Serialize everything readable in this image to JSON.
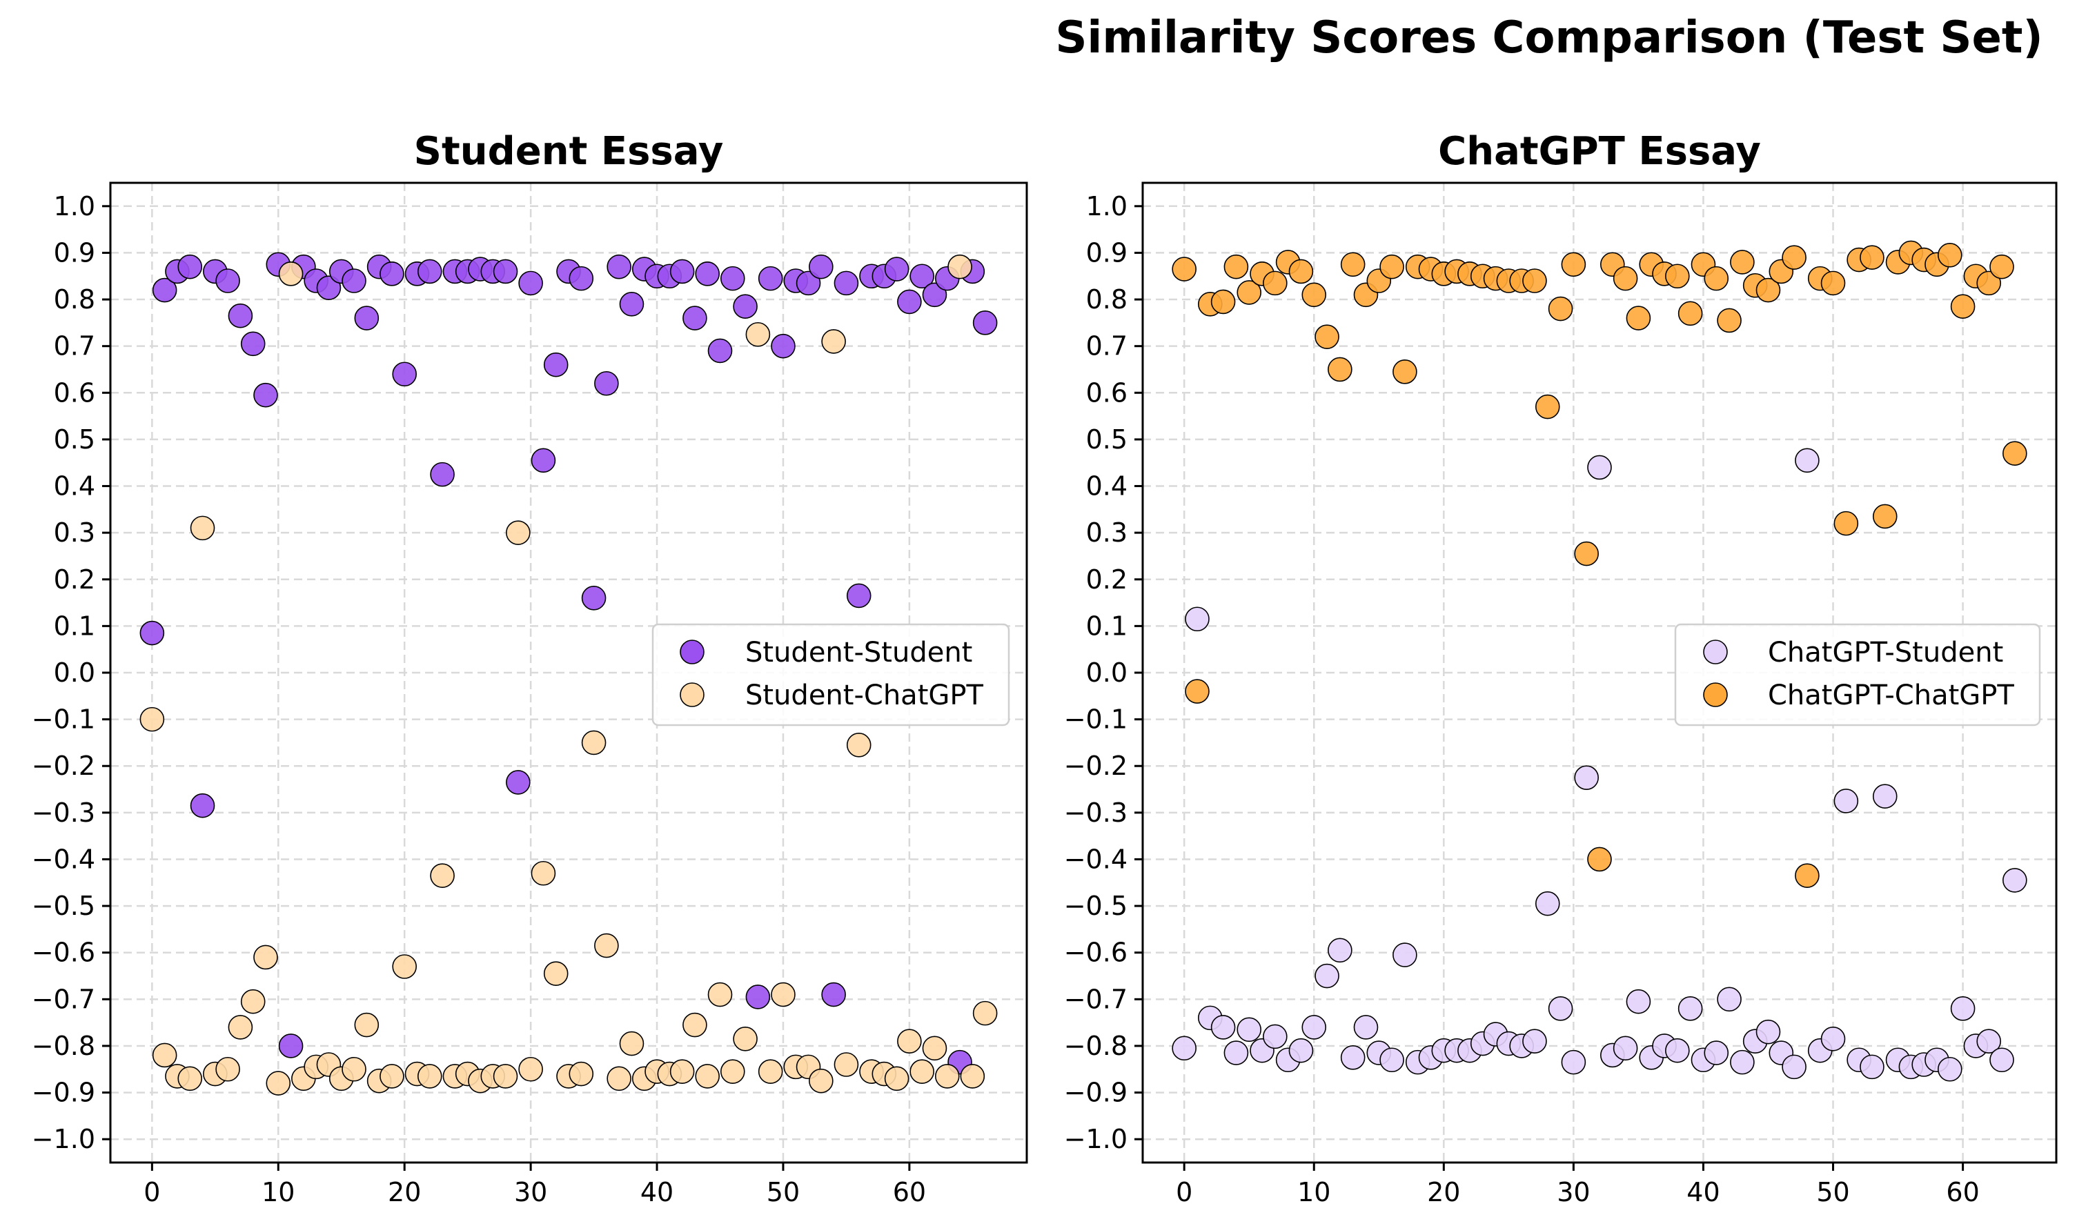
{
  "figure": {
    "suptitle": "Similarity Scores Comparison (Test Set)"
  },
  "chart_data": [
    {
      "type": "scatter",
      "title": "Student Essay",
      "xlabel": "",
      "ylabel": "",
      "xlim": [
        -3.3,
        69.3
      ],
      "ylim": [
        -1.05,
        1.05
      ],
      "x_ticks": [
        0,
        10,
        20,
        30,
        40,
        50,
        60
      ],
      "y_ticks": [
        1.0,
        0.9,
        0.8,
        0.7,
        0.6,
        0.5,
        0.4,
        0.3,
        0.2,
        0.1,
        0.0,
        -0.1,
        -0.2,
        -0.3,
        -0.4,
        -0.5,
        -0.6,
        -0.7,
        -0.8,
        -0.9,
        -1.0
      ],
      "grid": true,
      "legend_position": "center-right",
      "series": [
        {
          "name": "Student-Student",
          "color": "#9b51f0",
          "x": [
            0,
            1,
            2,
            3,
            4,
            5,
            6,
            7,
            8,
            9,
            10,
            11,
            12,
            13,
            14,
            15,
            16,
            17,
            18,
            19,
            20,
            21,
            22,
            23,
            24,
            25,
            26,
            27,
            28,
            29,
            30,
            31,
            32,
            33,
            34,
            35,
            36,
            37,
            38,
            39,
            40,
            41,
            42,
            43,
            44,
            45,
            46,
            47,
            48,
            49,
            50,
            51,
            52,
            53,
            54,
            55,
            56,
            57,
            58,
            59,
            60,
            61,
            62,
            63,
            64,
            65,
            66
          ],
          "y": [
            0.085,
            0.82,
            0.86,
            0.87,
            -0.285,
            0.86,
            0.84,
            0.765,
            0.705,
            0.595,
            0.875,
            -0.8,
            0.87,
            0.84,
            0.825,
            0.86,
            0.84,
            0.76,
            0.87,
            0.855,
            0.64,
            0.855,
            0.86,
            0.425,
            0.86,
            0.86,
            0.865,
            0.86,
            0.86,
            -0.235,
            0.835,
            0.455,
            0.66,
            0.86,
            0.845,
            0.16,
            0.62,
            0.87,
            0.79,
            0.865,
            0.85,
            0.85,
            0.86,
            0.76,
            0.855,
            0.69,
            0.845,
            0.785,
            -0.695,
            0.845,
            0.7,
            0.84,
            0.835,
            0.87,
            -0.69,
            0.835,
            0.165,
            0.85,
            0.85,
            0.865,
            0.795,
            0.85,
            0.81,
            0.845,
            -0.835,
            0.86,
            0.75
          ]
        },
        {
          "name": "Student-ChatGPT",
          "color": "#ffd9a8",
          "x": [
            0,
            1,
            2,
            3,
            4,
            5,
            6,
            7,
            8,
            9,
            10,
            11,
            12,
            13,
            14,
            15,
            16,
            17,
            18,
            19,
            20,
            21,
            22,
            23,
            24,
            25,
            26,
            27,
            28,
            29,
            30,
            31,
            32,
            33,
            34,
            35,
            36,
            37,
            38,
            39,
            40,
            41,
            42,
            43,
            44,
            45,
            46,
            47,
            48,
            49,
            50,
            51,
            52,
            53,
            54,
            55,
            56,
            57,
            58,
            59,
            60,
            61,
            62,
            63,
            64,
            65,
            66
          ],
          "y": [
            -0.1,
            -0.82,
            -0.865,
            -0.87,
            0.31,
            -0.86,
            -0.85,
            -0.76,
            -0.705,
            -0.61,
            -0.88,
            0.855,
            -0.87,
            -0.845,
            -0.84,
            -0.87,
            -0.85,
            -0.755,
            -0.875,
            -0.865,
            -0.63,
            -0.86,
            -0.865,
            -0.435,
            -0.865,
            -0.86,
            -0.875,
            -0.865,
            -0.865,
            0.3,
            -0.85,
            -0.43,
            -0.645,
            -0.865,
            -0.86,
            -0.15,
            -0.585,
            -0.87,
            -0.795,
            -0.87,
            -0.855,
            -0.86,
            -0.855,
            -0.755,
            -0.865,
            -0.69,
            -0.855,
            -0.785,
            0.725,
            -0.855,
            -0.69,
            -0.845,
            -0.845,
            -0.875,
            0.71,
            -0.84,
            -0.155,
            -0.855,
            -0.86,
            -0.87,
            -0.79,
            -0.855,
            -0.805,
            -0.865,
            0.87,
            -0.865,
            -0.73
          ]
        }
      ]
    },
    {
      "type": "scatter",
      "title": "ChatGPT Essay",
      "xlabel": "",
      "ylabel": "",
      "xlim": [
        -3.2,
        67.2
      ],
      "ylim": [
        -1.05,
        1.05
      ],
      "x_ticks": [
        0,
        10,
        20,
        30,
        40,
        50,
        60
      ],
      "y_ticks": [
        1.0,
        0.9,
        0.8,
        0.7,
        0.6,
        0.5,
        0.4,
        0.3,
        0.2,
        0.1,
        0.0,
        -0.1,
        -0.2,
        -0.3,
        -0.4,
        -0.5,
        -0.6,
        -0.7,
        -0.8,
        -0.9,
        -1.0
      ],
      "grid": true,
      "legend_position": "center-right",
      "series": [
        {
          "name": "ChatGPT-Student",
          "color": "#e4d2fb",
          "x": [
            0,
            1,
            2,
            3,
            4,
            5,
            6,
            7,
            8,
            9,
            10,
            11,
            12,
            13,
            14,
            15,
            16,
            17,
            18,
            19,
            20,
            21,
            22,
            23,
            24,
            25,
            26,
            27,
            28,
            29,
            30,
            31,
            32,
            33,
            34,
            35,
            36,
            37,
            38,
            39,
            40,
            41,
            42,
            43,
            44,
            45,
            46,
            47,
            48,
            49,
            50,
            51,
            52,
            53,
            54,
            55,
            56,
            57,
            58,
            59,
            60,
            61,
            62,
            63,
            64
          ],
          "y": [
            -0.805,
            0.115,
            -0.74,
            -0.76,
            -0.815,
            -0.765,
            -0.81,
            -0.78,
            -0.83,
            -0.81,
            -0.76,
            -0.65,
            -0.595,
            -0.825,
            -0.76,
            -0.815,
            -0.83,
            -0.605,
            -0.835,
            -0.825,
            -0.81,
            -0.81,
            -0.81,
            -0.795,
            -0.775,
            -0.795,
            -0.8,
            -0.79,
            -0.495,
            -0.72,
            -0.835,
            -0.225,
            0.44,
            -0.82,
            -0.805,
            -0.705,
            -0.825,
            -0.8,
            -0.81,
            -0.72,
            -0.83,
            -0.815,
            -0.7,
            -0.835,
            -0.79,
            -0.77,
            -0.815,
            -0.845,
            0.455,
            -0.81,
            -0.785,
            -0.275,
            -0.83,
            -0.845,
            -0.265,
            -0.83,
            -0.845,
            -0.84,
            -0.83,
            -0.85,
            -0.72,
            -0.8,
            -0.79,
            -0.83,
            -0.445
          ]
        },
        {
          "name": "ChatGPT-ChatGPT",
          "color": "#ffa83a",
          "x": [
            0,
            1,
            2,
            3,
            4,
            5,
            6,
            7,
            8,
            9,
            10,
            11,
            12,
            13,
            14,
            15,
            16,
            17,
            18,
            19,
            20,
            21,
            22,
            23,
            24,
            25,
            26,
            27,
            28,
            29,
            30,
            31,
            32,
            33,
            34,
            35,
            36,
            37,
            38,
            39,
            40,
            41,
            42,
            43,
            44,
            45,
            46,
            47,
            48,
            49,
            50,
            51,
            52,
            53,
            54,
            55,
            56,
            57,
            58,
            59,
            60,
            61,
            62,
            63,
            64
          ],
          "y": [
            0.865,
            -0.04,
            0.79,
            0.795,
            0.87,
            0.815,
            0.855,
            0.835,
            0.88,
            0.86,
            0.81,
            0.72,
            0.65,
            0.875,
            0.81,
            0.84,
            0.87,
            0.645,
            0.87,
            0.865,
            0.855,
            0.86,
            0.855,
            0.85,
            0.845,
            0.84,
            0.84,
            0.84,
            0.57,
            0.78,
            0.875,
            0.255,
            -0.4,
            0.875,
            0.845,
            0.76,
            0.875,
            0.855,
            0.85,
            0.77,
            0.875,
            0.845,
            0.755,
            0.88,
            0.83,
            0.82,
            0.86,
            0.89,
            -0.435,
            0.845,
            0.835,
            0.32,
            0.885,
            0.89,
            0.335,
            0.88,
            0.9,
            0.885,
            0.875,
            0.895,
            0.785,
            0.85,
            0.835,
            0.87,
            0.47
          ]
        }
      ]
    }
  ]
}
